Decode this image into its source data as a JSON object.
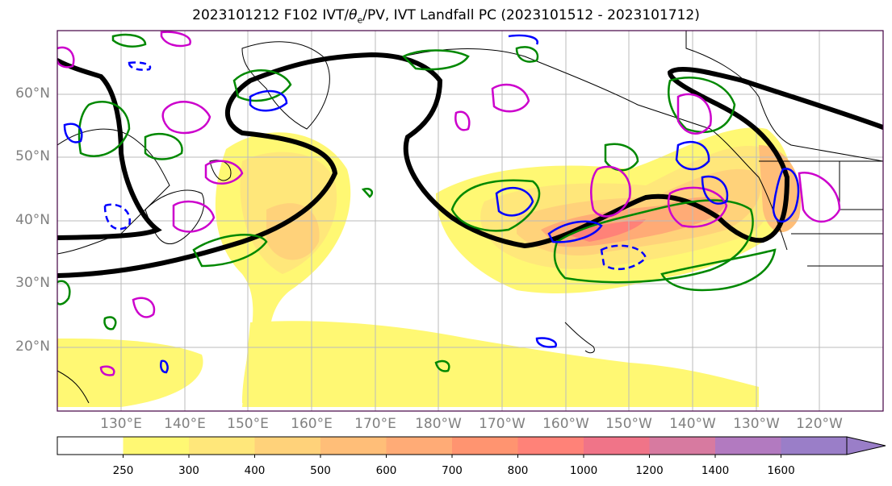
{
  "title_main": "2023101212 F102 IVT/",
  "title_sym": "θ",
  "title_sub": "e",
  "title_rest": "/PV, IVT Landfall PC (2023101512 - 2023101712)",
  "lat_labels": [
    "60°N",
    "50°N",
    "40°N",
    "30°N",
    "20°N"
  ],
  "lon_labels": [
    "130°E",
    "140°E",
    "150°E",
    "160°E",
    "170°E",
    "180°W",
    "170°W",
    "160°W",
    "150°W",
    "140°W",
    "130°W",
    "120°W"
  ],
  "colorbar": {
    "levels": [
      "250",
      "300",
      "400",
      "500",
      "600",
      "700",
      "800",
      "1000",
      "1200",
      "1400",
      "1600"
    ],
    "colors": [
      "#ffffff",
      "#fff873",
      "#ffe77a",
      "#ffd27a",
      "#ffbe78",
      "#ffab76",
      "#ff9470",
      "#ff8278",
      "#f07488",
      "#d77aa0",
      "#b27ac0",
      "#9a7ec8"
    ]
  },
  "contour_colors": {
    "theta_e": "#000000",
    "pv_positive": "#cc00cc",
    "pv_negative": "#0000ff",
    "ivt_pc": "#008800"
  }
}
